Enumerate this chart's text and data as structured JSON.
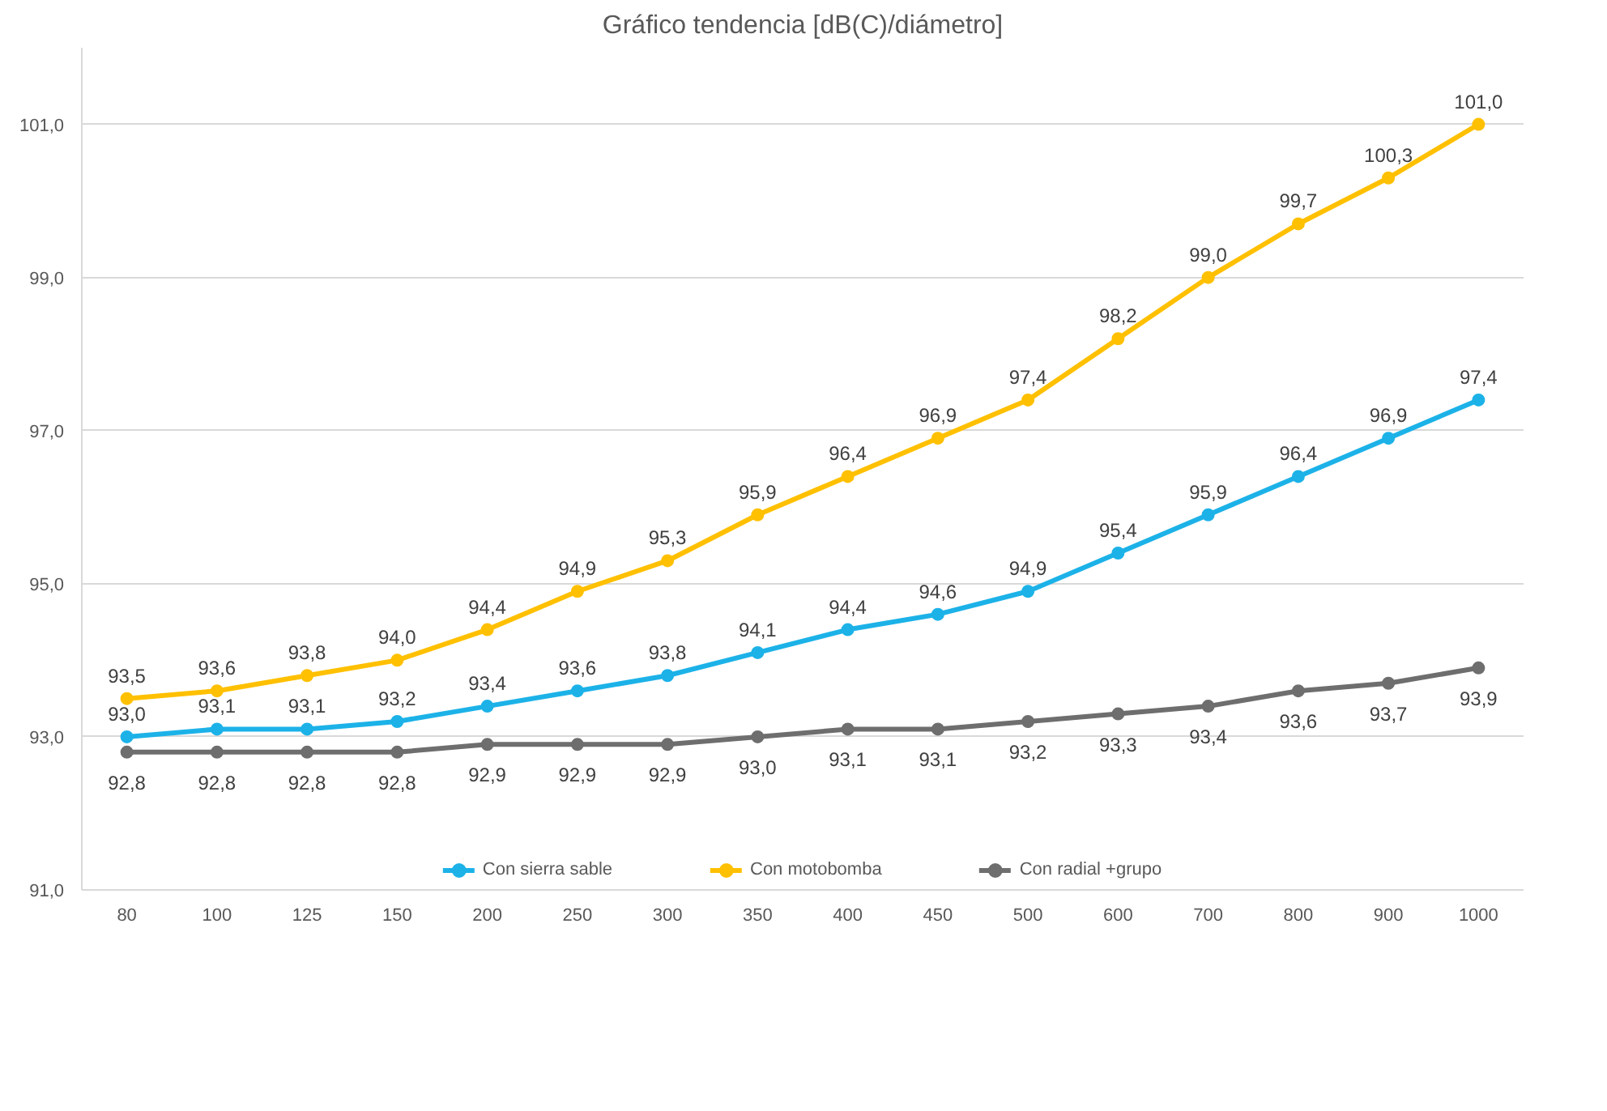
{
  "chart_data": {
    "type": "line",
    "title": "Gráfico tendencia [dB(C)/diámetro]",
    "categories": [
      "80",
      "100",
      "125",
      "150",
      "200",
      "250",
      "300",
      "350",
      "400",
      "450",
      "500",
      "600",
      "700",
      "800",
      "900",
      "1000"
    ],
    "series": [
      {
        "name": "Con sierra sable",
        "color": "#1cb2e8",
        "values": [
          93.0,
          93.1,
          93.1,
          93.2,
          93.4,
          93.6,
          93.8,
          94.1,
          94.4,
          94.6,
          94.9,
          95.4,
          95.9,
          96.4,
          96.9,
          97.4
        ],
        "value_labels": [
          "93,0",
          "93,1",
          "93,1",
          "93,2",
          "93,4",
          "93,6",
          "93,8",
          "94,1",
          "94,4",
          "94,6",
          "94,9",
          "95,4",
          "95,9",
          "96,4",
          "96,9",
          "97,4"
        ]
      },
      {
        "name": "Con motobomba",
        "color": "#ffc000",
        "values": [
          93.5,
          93.6,
          93.8,
          94.0,
          94.4,
          94.9,
          95.3,
          95.9,
          96.4,
          96.9,
          97.4,
          98.2,
          99.0,
          99.7,
          100.3,
          101.0
        ],
        "value_labels": [
          "93,5",
          "93,6",
          "93,8",
          "94,0",
          "94,4",
          "94,9",
          "95,3",
          "95,9",
          "96,4",
          "96,9",
          "97,4",
          "98,2",
          "99,0",
          "99,7",
          "100,3",
          "101,0"
        ]
      },
      {
        "name": "Con radial +grupo",
        "color": "#6e6e6e",
        "values": [
          92.8,
          92.8,
          92.8,
          92.8,
          92.9,
          92.9,
          92.9,
          93.0,
          93.1,
          93.1,
          93.2,
          93.3,
          93.4,
          93.6,
          93.7,
          93.9
        ],
        "value_labels": [
          "92,8",
          "92,8",
          "92,8",
          "92,8",
          "92,9",
          "92,9",
          "92,9",
          "93,0",
          "93,1",
          "93,1",
          "93,2",
          "93,3",
          "93,4",
          "93,6",
          "93,7",
          "93,9"
        ]
      }
    ],
    "ylim": [
      91,
      102
    ],
    "yticks": [
      {
        "value": 91,
        "label": "91,0"
      },
      {
        "value": 93,
        "label": "93,0"
      },
      {
        "value": 95,
        "label": "95,0"
      },
      {
        "value": 97,
        "label": "97,0"
      },
      {
        "value": 99,
        "label": "99,0"
      },
      {
        "value": 101,
        "label": "101,0"
      }
    ],
    "grid": "y",
    "legend": "bottom",
    "marker": "circle",
    "line_style": "solid"
  }
}
